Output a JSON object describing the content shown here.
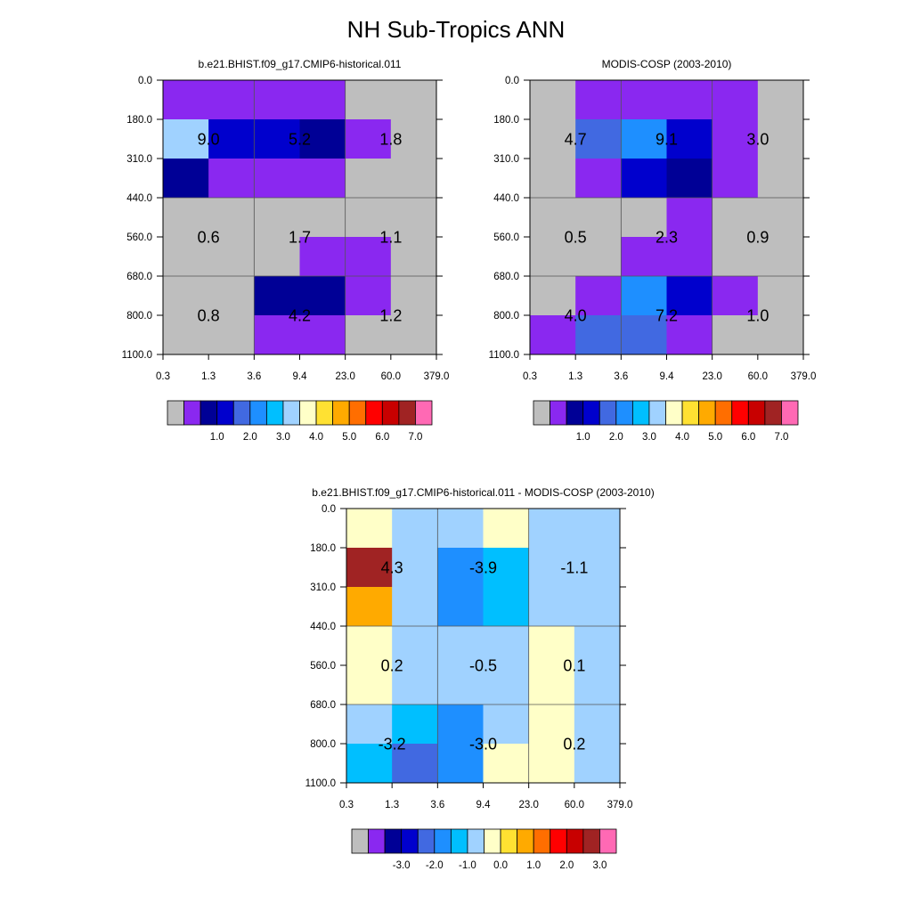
{
  "title": "NH Sub-Tropics ANN",
  "color_levels": {
    "absolute": [
      "1.0",
      "2.0",
      "3.0",
      "4.0",
      "5.0",
      "6.0",
      "7.0"
    ],
    "difference": [
      "-3.0",
      "-2.0",
      "-1.0",
      "0.0",
      "1.0",
      "2.0",
      "3.0"
    ]
  },
  "palette": [
    "#BEBEBE",
    "#8A28F0",
    "#000096",
    "#0000CD",
    "#4169E1",
    "#1E8FFF",
    "#00BFFF",
    "#A0D2FF",
    "#FFFFC8",
    "#FFE132",
    "#FFAA00",
    "#FF6E00",
    "#FF0000",
    "#C80000",
    "#A02323",
    "#FF69B4"
  ],
  "chart_data": [
    {
      "type": "heatmap",
      "title": "b.e21.BHIST.f09_g17.CMIP6-historical.011",
      "x_ticks": [
        "0.3",
        "1.3",
        "3.6",
        "9.4",
        "23.0",
        "60.0",
        "379.0"
      ],
      "y_ticks": [
        "0.0",
        "180.0",
        "310.0",
        "440.0",
        "560.0",
        "680.0",
        "800.0",
        "1100.0"
      ],
      "colorbar": "absolute",
      "cell_colors": [
        [
          1,
          1,
          1,
          1,
          0,
          0
        ],
        [
          7,
          3,
          3,
          2,
          1,
          0
        ],
        [
          2,
          1,
          1,
          1,
          0,
          0
        ],
        [
          0,
          0,
          0,
          0,
          0,
          0
        ],
        [
          0,
          0,
          0,
          1,
          1,
          0
        ],
        [
          0,
          0,
          2,
          2,
          1,
          0
        ],
        [
          0,
          0,
          1,
          1,
          0,
          0
        ]
      ],
      "box_values": [
        [
          "9.0",
          "5.2",
          "1.8"
        ],
        [
          "0.6",
          "1.7",
          "1.1"
        ],
        [
          "0.8",
          "4.2",
          "1.2"
        ]
      ]
    },
    {
      "type": "heatmap",
      "title": "MODIS-COSP (2003-2010)",
      "x_ticks": [
        "0.3",
        "1.3",
        "3.6",
        "9.4",
        "23.0",
        "60.0",
        "379.0"
      ],
      "y_ticks": [
        "0.0",
        "180.0",
        "310.0",
        "440.0",
        "560.0",
        "680.0",
        "800.0",
        "1100.0"
      ],
      "colorbar": "absolute",
      "cell_colors": [
        [
          0,
          1,
          1,
          1,
          1,
          0
        ],
        [
          0,
          4,
          5,
          3,
          1,
          0
        ],
        [
          0,
          1,
          3,
          2,
          1,
          0
        ],
        [
          0,
          0,
          0,
          1,
          0,
          0
        ],
        [
          0,
          0,
          1,
          1,
          0,
          0
        ],
        [
          0,
          1,
          5,
          3,
          1,
          0
        ],
        [
          1,
          4,
          4,
          1,
          0,
          0
        ]
      ],
      "box_values": [
        [
          "4.7",
          "9.1",
          "3.0"
        ],
        [
          "0.5",
          "2.3",
          "0.9"
        ],
        [
          "4.0",
          "7.2",
          "1.0"
        ]
      ]
    },
    {
      "type": "heatmap",
      "title": "b.e21.BHIST.f09_g17.CMIP6-historical.011 - MODIS-COSP (2003-2010)",
      "x_ticks": [
        "0.3",
        "1.3",
        "3.6",
        "9.4",
        "23.0",
        "60.0",
        "379.0"
      ],
      "y_ticks": [
        "0.0",
        "180.0",
        "310.0",
        "440.0",
        "560.0",
        "680.0",
        "800.0",
        "1100.0"
      ],
      "colorbar": "difference",
      "cell_colors": [
        [
          8,
          7,
          7,
          8,
          7,
          7
        ],
        [
          14,
          7,
          5,
          6,
          7,
          7
        ],
        [
          10,
          7,
          5,
          6,
          7,
          7
        ],
        [
          8,
          7,
          7,
          7,
          8,
          7
        ],
        [
          8,
          7,
          7,
          7,
          8,
          7
        ],
        [
          7,
          6,
          5,
          7,
          8,
          7
        ],
        [
          6,
          4,
          5,
          8,
          8,
          7
        ]
      ],
      "box_values": [
        [
          "4.3",
          "-3.9",
          "-1.1"
        ],
        [
          "0.2",
          "-0.5",
          "0.1"
        ],
        [
          "-3.2",
          "-3.0",
          "0.2"
        ]
      ]
    }
  ]
}
